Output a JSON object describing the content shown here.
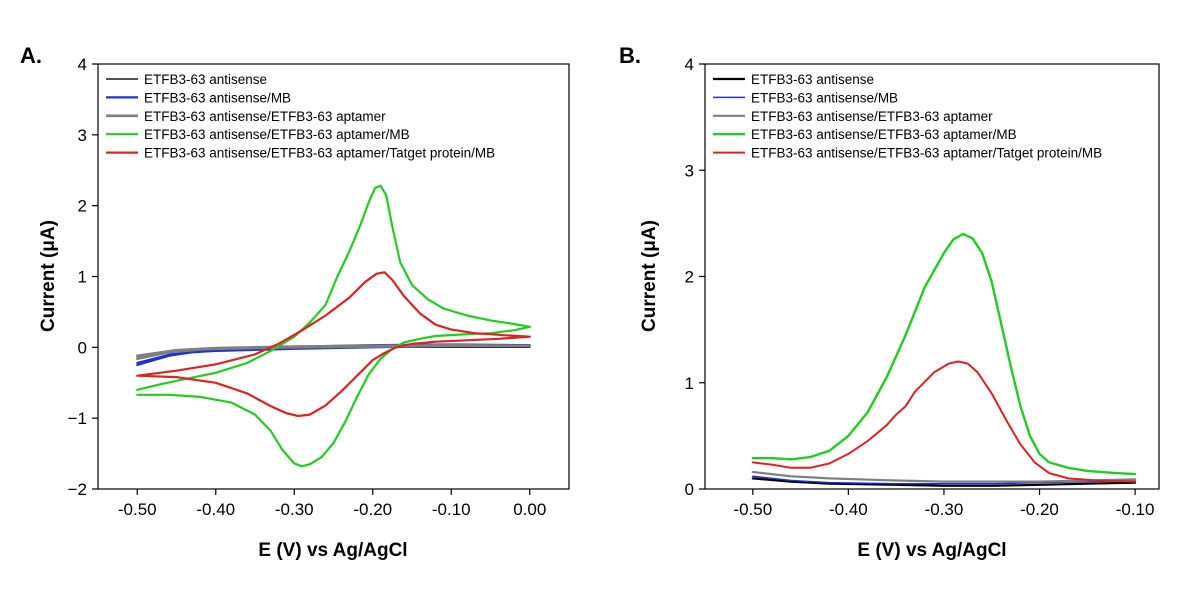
{
  "figure": {
    "panels": [
      {
        "label": "A.",
        "xlabel": "E (V) vs Ag/AgCl",
        "ylabel": "Current (μA)"
      },
      {
        "label": "B.",
        "xlabel": "E (V) vs Ag/AgCl",
        "ylabel": "Current (μA)"
      }
    ]
  },
  "chart_data": [
    {
      "type": "line",
      "panel": "A.",
      "xlabel": "E (V) vs Ag/AgCl",
      "ylabel": "Current (μA)",
      "xlim": [
        -0.55,
        0.05
      ],
      "ylim": [
        -2,
        4
      ],
      "xticks": [
        -0.5,
        -0.4,
        -0.3,
        -0.2,
        -0.1,
        0.0
      ],
      "xtick_labels": [
        "-0.50",
        "-0.40",
        "-0.30",
        "-0.20",
        "-0.10",
        "0.00"
      ],
      "yticks": [
        -2,
        -1,
        0,
        1,
        2,
        3,
        4
      ],
      "ytick_labels": [
        "−2",
        "−1",
        "0",
        "1",
        "2",
        "3",
        "4"
      ],
      "grid": false,
      "legend_position": "top-left",
      "series": [
        {
          "name": "ETFB3-63 antisense",
          "color": "#1a1a1a",
          "width": 1.5,
          "points": [
            [
              -0.5,
              -0.15
            ],
            [
              -0.45,
              -0.06
            ],
            [
              -0.4,
              -0.03
            ],
            [
              -0.3,
              -0.01
            ],
            [
              -0.2,
              0.0
            ],
            [
              -0.1,
              0.0
            ],
            [
              0.0,
              0.0
            ],
            [
              -0.1,
              0.01
            ],
            [
              -0.2,
              0.01
            ],
            [
              -0.3,
              0.0
            ],
            [
              -0.4,
              -0.02
            ],
            [
              -0.45,
              -0.05
            ],
            [
              -0.5,
              -0.13
            ]
          ]
        },
        {
          "name": "ETFB3-63 antisense/MB",
          "color": "#1f2fd0",
          "width": 2.2,
          "points": [
            [
              -0.5,
              -0.25
            ],
            [
              -0.46,
              -0.12
            ],
            [
              -0.43,
              -0.07
            ],
            [
              -0.4,
              -0.05
            ],
            [
              -0.3,
              -0.02
            ],
            [
              -0.2,
              0.0
            ],
            [
              -0.1,
              0.02
            ],
            [
              0.0,
              0.03
            ],
            [
              -0.1,
              0.04
            ],
            [
              -0.2,
              0.03
            ],
            [
              -0.3,
              0.01
            ],
            [
              -0.4,
              -0.03
            ],
            [
              -0.45,
              -0.08
            ],
            [
              -0.5,
              -0.22
            ]
          ]
        },
        {
          "name": "ETFB3-63 antisense/ETFB3-63 aptamer",
          "color": "#7f7f7f",
          "width": 2.6,
          "points": [
            [
              -0.5,
              -0.16
            ],
            [
              -0.46,
              -0.07
            ],
            [
              -0.42,
              -0.03
            ],
            [
              -0.4,
              -0.02
            ],
            [
              -0.3,
              0.0
            ],
            [
              -0.2,
              0.01
            ],
            [
              -0.1,
              0.02
            ],
            [
              0.0,
              0.02
            ],
            [
              -0.1,
              0.03
            ],
            [
              -0.2,
              0.02
            ],
            [
              -0.3,
              0.01
            ],
            [
              -0.4,
              -0.01
            ],
            [
              -0.45,
              -0.04
            ],
            [
              -0.5,
              -0.12
            ]
          ]
        },
        {
          "name": "ETFB3-63 antisense/ETFB3-63 aptamer/MB",
          "color": "#22cc22",
          "width": 2.2,
          "points": [
            [
              -0.5,
              -0.67
            ],
            [
              -0.46,
              -0.67
            ],
            [
              -0.42,
              -0.7
            ],
            [
              -0.38,
              -0.78
            ],
            [
              -0.35,
              -0.95
            ],
            [
              -0.33,
              -1.18
            ],
            [
              -0.315,
              -1.45
            ],
            [
              -0.3,
              -1.64
            ],
            [
              -0.29,
              -1.68
            ],
            [
              -0.28,
              -1.65
            ],
            [
              -0.265,
              -1.55
            ],
            [
              -0.25,
              -1.35
            ],
            [
              -0.235,
              -1.05
            ],
            [
              -0.22,
              -0.7
            ],
            [
              -0.205,
              -0.38
            ],
            [
              -0.19,
              -0.16
            ],
            [
              -0.175,
              -0.02
            ],
            [
              -0.16,
              0.07
            ],
            [
              -0.14,
              0.12
            ],
            [
              -0.12,
              0.16
            ],
            [
              -0.09,
              0.18
            ],
            [
              -0.05,
              0.2
            ],
            [
              -0.02,
              0.24
            ],
            [
              0.0,
              0.29
            ],
            [
              -0.02,
              0.33
            ],
            [
              -0.05,
              0.38
            ],
            [
              -0.08,
              0.45
            ],
            [
              -0.11,
              0.55
            ],
            [
              -0.13,
              0.68
            ],
            [
              -0.15,
              0.88
            ],
            [
              -0.165,
              1.2
            ],
            [
              -0.175,
              1.7
            ],
            [
              -0.183,
              2.15
            ],
            [
              -0.19,
              2.28
            ],
            [
              -0.197,
              2.25
            ],
            [
              -0.205,
              2.05
            ],
            [
              -0.215,
              1.75
            ],
            [
              -0.23,
              1.35
            ],
            [
              -0.245,
              1.0
            ],
            [
              -0.26,
              0.6
            ],
            [
              -0.28,
              0.35
            ],
            [
              -0.3,
              0.15
            ],
            [
              -0.33,
              -0.05
            ],
            [
              -0.36,
              -0.22
            ],
            [
              -0.4,
              -0.36
            ],
            [
              -0.44,
              -0.45
            ],
            [
              -0.47,
              -0.52
            ],
            [
              -0.5,
              -0.6
            ]
          ]
        },
        {
          "name": "ETFB3-63 antisense/ETFB3-63 aptamer/Tatget protein/MB",
          "color": "#dd2222",
          "width": 2.2,
          "points": [
            [
              -0.5,
              -0.4
            ],
            [
              -0.45,
              -0.42
            ],
            [
              -0.4,
              -0.5
            ],
            [
              -0.36,
              -0.65
            ],
            [
              -0.33,
              -0.83
            ],
            [
              -0.31,
              -0.93
            ],
            [
              -0.295,
              -0.97
            ],
            [
              -0.28,
              -0.95
            ],
            [
              -0.26,
              -0.82
            ],
            [
              -0.24,
              -0.62
            ],
            [
              -0.22,
              -0.4
            ],
            [
              -0.2,
              -0.18
            ],
            [
              -0.185,
              -0.08
            ],
            [
              -0.17,
              0.0
            ],
            [
              -0.15,
              0.05
            ],
            [
              -0.12,
              0.08
            ],
            [
              -0.08,
              0.1
            ],
            [
              -0.04,
              0.12
            ],
            [
              0.0,
              0.15
            ],
            [
              -0.03,
              0.17
            ],
            [
              -0.07,
              0.2
            ],
            [
              -0.1,
              0.25
            ],
            [
              -0.12,
              0.32
            ],
            [
              -0.14,
              0.48
            ],
            [
              -0.16,
              0.72
            ],
            [
              -0.175,
              0.95
            ],
            [
              -0.185,
              1.06
            ],
            [
              -0.195,
              1.04
            ],
            [
              -0.21,
              0.92
            ],
            [
              -0.23,
              0.7
            ],
            [
              -0.26,
              0.45
            ],
            [
              -0.29,
              0.24
            ],
            [
              -0.32,
              0.05
            ],
            [
              -0.35,
              -0.1
            ],
            [
              -0.4,
              -0.24
            ],
            [
              -0.45,
              -0.33
            ],
            [
              -0.5,
              -0.4
            ]
          ]
        }
      ]
    },
    {
      "type": "line",
      "panel": "B.",
      "xlabel": "E (V) vs Ag/AgCl",
      "ylabel": "Current (μA)",
      "xlim": [
        -0.55,
        -0.075
      ],
      "ylim": [
        0,
        4
      ],
      "xticks": [
        -0.5,
        -0.4,
        -0.3,
        -0.2,
        -0.1
      ],
      "xtick_labels": [
        "-0.50",
        "-0.40",
        "-0.30",
        "-0.20",
        "-0.10"
      ],
      "yticks": [
        0,
        1,
        2,
        3,
        4
      ],
      "ytick_labels": [
        "0",
        "1",
        "2",
        "3",
        "4"
      ],
      "grid": false,
      "legend_position": "top-left",
      "series": [
        {
          "name": "ETFB3-63 antisense",
          "color": "#000000",
          "width": 2.2,
          "points": [
            [
              -0.5,
              0.1
            ],
            [
              -0.46,
              0.07
            ],
            [
              -0.42,
              0.05
            ],
            [
              -0.35,
              0.04
            ],
            [
              -0.3,
              0.03
            ],
            [
              -0.25,
              0.03
            ],
            [
              -0.2,
              0.04
            ],
            [
              -0.15,
              0.05
            ],
            [
              -0.1,
              0.06
            ]
          ]
        },
        {
          "name": "ETFB3-63 antisense/MB",
          "color": "#1f2fd0",
          "width": 1.5,
          "points": [
            [
              -0.5,
              0.12
            ],
            [
              -0.46,
              0.08
            ],
            [
              -0.42,
              0.06
            ],
            [
              -0.35,
              0.05
            ],
            [
              -0.3,
              0.05
            ],
            [
              -0.25,
              0.05
            ],
            [
              -0.2,
              0.06
            ],
            [
              -0.15,
              0.07
            ],
            [
              -0.1,
              0.08
            ]
          ]
        },
        {
          "name": "ETFB3-63 antisense/ETFB3-63 aptamer",
          "color": "#7f7f7f",
          "width": 2.2,
          "points": [
            [
              -0.5,
              0.16
            ],
            [
              -0.46,
              0.12
            ],
            [
              -0.42,
              0.1
            ],
            [
              -0.35,
              0.08
            ],
            [
              -0.3,
              0.07
            ],
            [
              -0.25,
              0.07
            ],
            [
              -0.2,
              0.07
            ],
            [
              -0.15,
              0.08
            ],
            [
              -0.1,
              0.09
            ]
          ]
        },
        {
          "name": "ETFB3-63 antisense/ETFB3-63 aptamer/MB",
          "color": "#22cc22",
          "width": 2.4,
          "points": [
            [
              -0.5,
              0.29
            ],
            [
              -0.48,
              0.29
            ],
            [
              -0.46,
              0.28
            ],
            [
              -0.44,
              0.3
            ],
            [
              -0.42,
              0.36
            ],
            [
              -0.4,
              0.5
            ],
            [
              -0.38,
              0.72
            ],
            [
              -0.36,
              1.05
            ],
            [
              -0.34,
              1.45
            ],
            [
              -0.32,
              1.9
            ],
            [
              -0.3,
              2.22
            ],
            [
              -0.29,
              2.35
            ],
            [
              -0.28,
              2.4
            ],
            [
              -0.27,
              2.36
            ],
            [
              -0.26,
              2.22
            ],
            [
              -0.25,
              1.95
            ],
            [
              -0.24,
              1.55
            ],
            [
              -0.23,
              1.15
            ],
            [
              -0.22,
              0.78
            ],
            [
              -0.21,
              0.5
            ],
            [
              -0.2,
              0.33
            ],
            [
              -0.19,
              0.25
            ],
            [
              -0.17,
              0.2
            ],
            [
              -0.15,
              0.17
            ],
            [
              -0.12,
              0.15
            ],
            [
              -0.1,
              0.14
            ]
          ]
        },
        {
          "name": "ETFB3-63 antisense/ETFB3-63 aptamer/Tatget protein/MB",
          "color": "#dd2222",
          "width": 2.0,
          "points": [
            [
              -0.5,
              0.25
            ],
            [
              -0.48,
              0.23
            ],
            [
              -0.46,
              0.2
            ],
            [
              -0.44,
              0.2
            ],
            [
              -0.42,
              0.24
            ],
            [
              -0.4,
              0.33
            ],
            [
              -0.38,
              0.45
            ],
            [
              -0.36,
              0.6
            ],
            [
              -0.35,
              0.7
            ],
            [
              -0.34,
              0.78
            ],
            [
              -0.33,
              0.92
            ],
            [
              -0.31,
              1.1
            ],
            [
              -0.295,
              1.18
            ],
            [
              -0.285,
              1.2
            ],
            [
              -0.275,
              1.18
            ],
            [
              -0.265,
              1.1
            ],
            [
              -0.25,
              0.9
            ],
            [
              -0.235,
              0.65
            ],
            [
              -0.22,
              0.42
            ],
            [
              -0.205,
              0.25
            ],
            [
              -0.19,
              0.15
            ],
            [
              -0.17,
              0.1
            ],
            [
              -0.14,
              0.08
            ],
            [
              -0.1,
              0.07
            ]
          ]
        }
      ]
    }
  ]
}
